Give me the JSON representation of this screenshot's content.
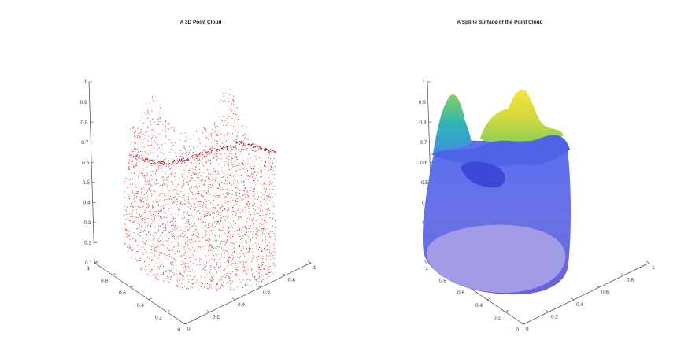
{
  "chart_data": [
    {
      "type": "scatter",
      "title": "A 3D Point Cloud",
      "projection": "3d",
      "xlabel": "",
      "ylabel": "",
      "zlabel": "",
      "xlim": [
        0,
        1
      ],
      "ylim": [
        0,
        1
      ],
      "zlim": [
        0.1,
        1
      ],
      "x_ticks": [
        "0",
        "0.2",
        "0.4",
        "0.6",
        "0.8",
        "1"
      ],
      "y_ticks": [
        "0",
        "0.2",
        "0.4",
        "0.6",
        "0.8",
        "1"
      ],
      "z_ticks": [
        "0.1",
        "0.2",
        "0.3",
        "0.4",
        "0.5",
        "0.6",
        "0.7",
        "0.8",
        "0.9",
        "1"
      ],
      "marker_color": "#d62020",
      "grid": false,
      "description_points": "dense point cloud of a tooth-like closed surface with two peaks near z=0.9-1.0 and an open rim near z=0.55-0.6"
    },
    {
      "type": "surface",
      "title": "A Spline Surface of the Point Cloud",
      "projection": "3d",
      "xlabel": "",
      "ylabel": "",
      "zlabel": "",
      "xlim": [
        0,
        1
      ],
      "ylim": [
        0,
        1
      ],
      "zlim": [
        0.1,
        1
      ],
      "x_ticks": [
        "0",
        "0.2",
        "0.4",
        "0.6",
        "0.8",
        "1"
      ],
      "y_ticks": [
        "0",
        "0.2",
        "0.4",
        "0.6",
        "0.8",
        "1"
      ],
      "z_ticks": [
        "0.1",
        "0.2",
        "0.3",
        "0.4",
        "0.5",
        "0.6",
        "0.7",
        "0.8",
        "0.9",
        "1"
      ],
      "colormap": [
        "#4a3fd0",
        "#5c60e8",
        "#2fa9c9",
        "#7cc86a",
        "#f3e23a"
      ],
      "grid": false
    }
  ]
}
